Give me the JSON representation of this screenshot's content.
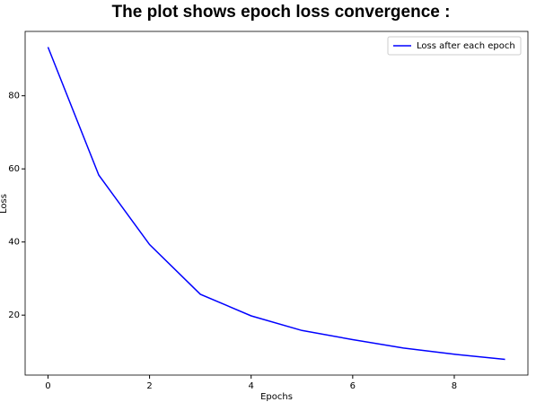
{
  "chart_data": {
    "type": "line",
    "title": "The plot shows epoch loss convergence :",
    "x_label": "Epochs",
    "y_label": "Loss",
    "x": [
      0,
      1,
      2,
      3,
      4,
      5,
      6,
      7,
      8,
      9
    ],
    "series": [
      {
        "name": "Loss after each epoch",
        "color": "#0000ff",
        "values": [
          93.3,
          58.3,
          39.3,
          25.7,
          19.8,
          15.8,
          13.3,
          11.0,
          9.3,
          7.9
        ]
      }
    ],
    "xlim": [
      -0.45,
      9.45
    ],
    "xticks": [
      0,
      2,
      4,
      6,
      8
    ],
    "ylim": [
      3.6,
      97.6
    ],
    "yticks": [
      20,
      40,
      60,
      80
    ],
    "legend": "upper right",
    "grid": false
  }
}
